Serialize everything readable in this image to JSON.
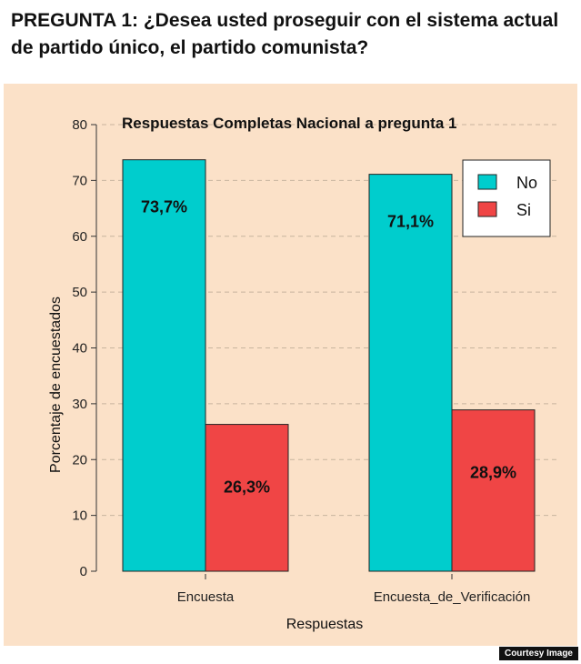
{
  "question": "PREGUNTA 1: ¿Desea usted proseguir con el sistema actual de partido único, el partido comunista?",
  "credit": "Courtesy Image",
  "chart_data": {
    "type": "bar",
    "title": "Respuestas Completas Nacional a pregunta 1",
    "xlabel": "Respuestas",
    "ylabel": "Porcentaje de encuestados",
    "categories": [
      "Encuesta",
      "Encuesta_de_Verificación"
    ],
    "series": [
      {
        "name": "No",
        "values": [
          73.7,
          71.1
        ],
        "labels": [
          "73,7%",
          "71,1%"
        ],
        "color": "#00cdcd"
      },
      {
        "name": "Si",
        "values": [
          26.3,
          28.9
        ],
        "labels": [
          "26,3%",
          "28,9%"
        ],
        "color": "#f04545"
      }
    ],
    "ylim": [
      0,
      80
    ],
    "yticks": [
      "0",
      "10",
      "20",
      "30",
      "40",
      "50",
      "60",
      "70",
      "80"
    ],
    "grid": "horizontal dashed",
    "legend_position": "top-right",
    "background": "#fbe1c8"
  }
}
